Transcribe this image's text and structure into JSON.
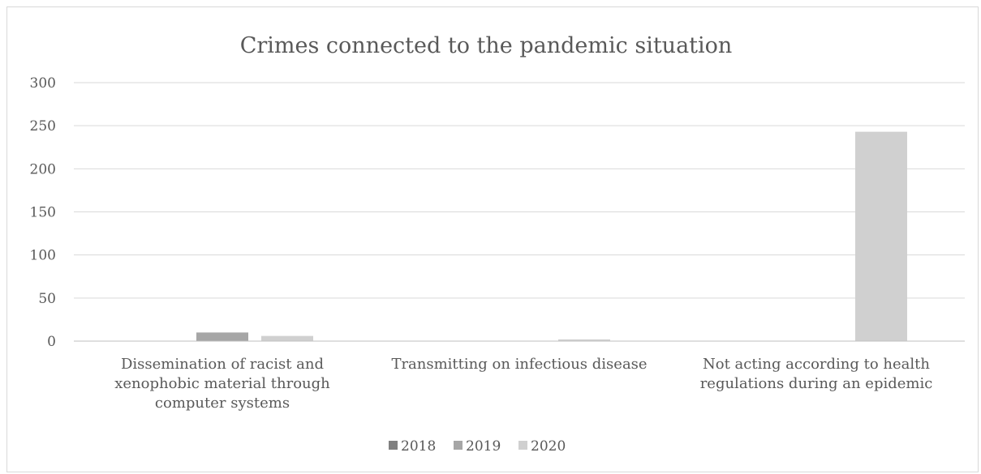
{
  "page_top_fragment": "",
  "chart_data": {
    "type": "bar",
    "title": "Crimes connected to the pandemic situation",
    "xlabel": "",
    "ylabel": "",
    "ylim": [
      0,
      300
    ],
    "yticks": [
      0,
      50,
      100,
      150,
      200,
      250,
      300
    ],
    "grid": true,
    "legend_position": "bottom",
    "categories": [
      [
        "Dissemination of racist and",
        "xenophobic material through",
        "computer systems"
      ],
      [
        "Transmitting on infectious disease"
      ],
      [
        "Not acting according to health",
        "regulations during an epidemic"
      ]
    ],
    "series": [
      {
        "name": "2018",
        "color": "#808080",
        "values": [
          0,
          0,
          0
        ]
      },
      {
        "name": "2019",
        "color": "#a6a6a6",
        "values": [
          10,
          0,
          0
        ]
      },
      {
        "name": "2020",
        "color": "#d0d0d0",
        "values": [
          6,
          2,
          243
        ]
      }
    ]
  }
}
